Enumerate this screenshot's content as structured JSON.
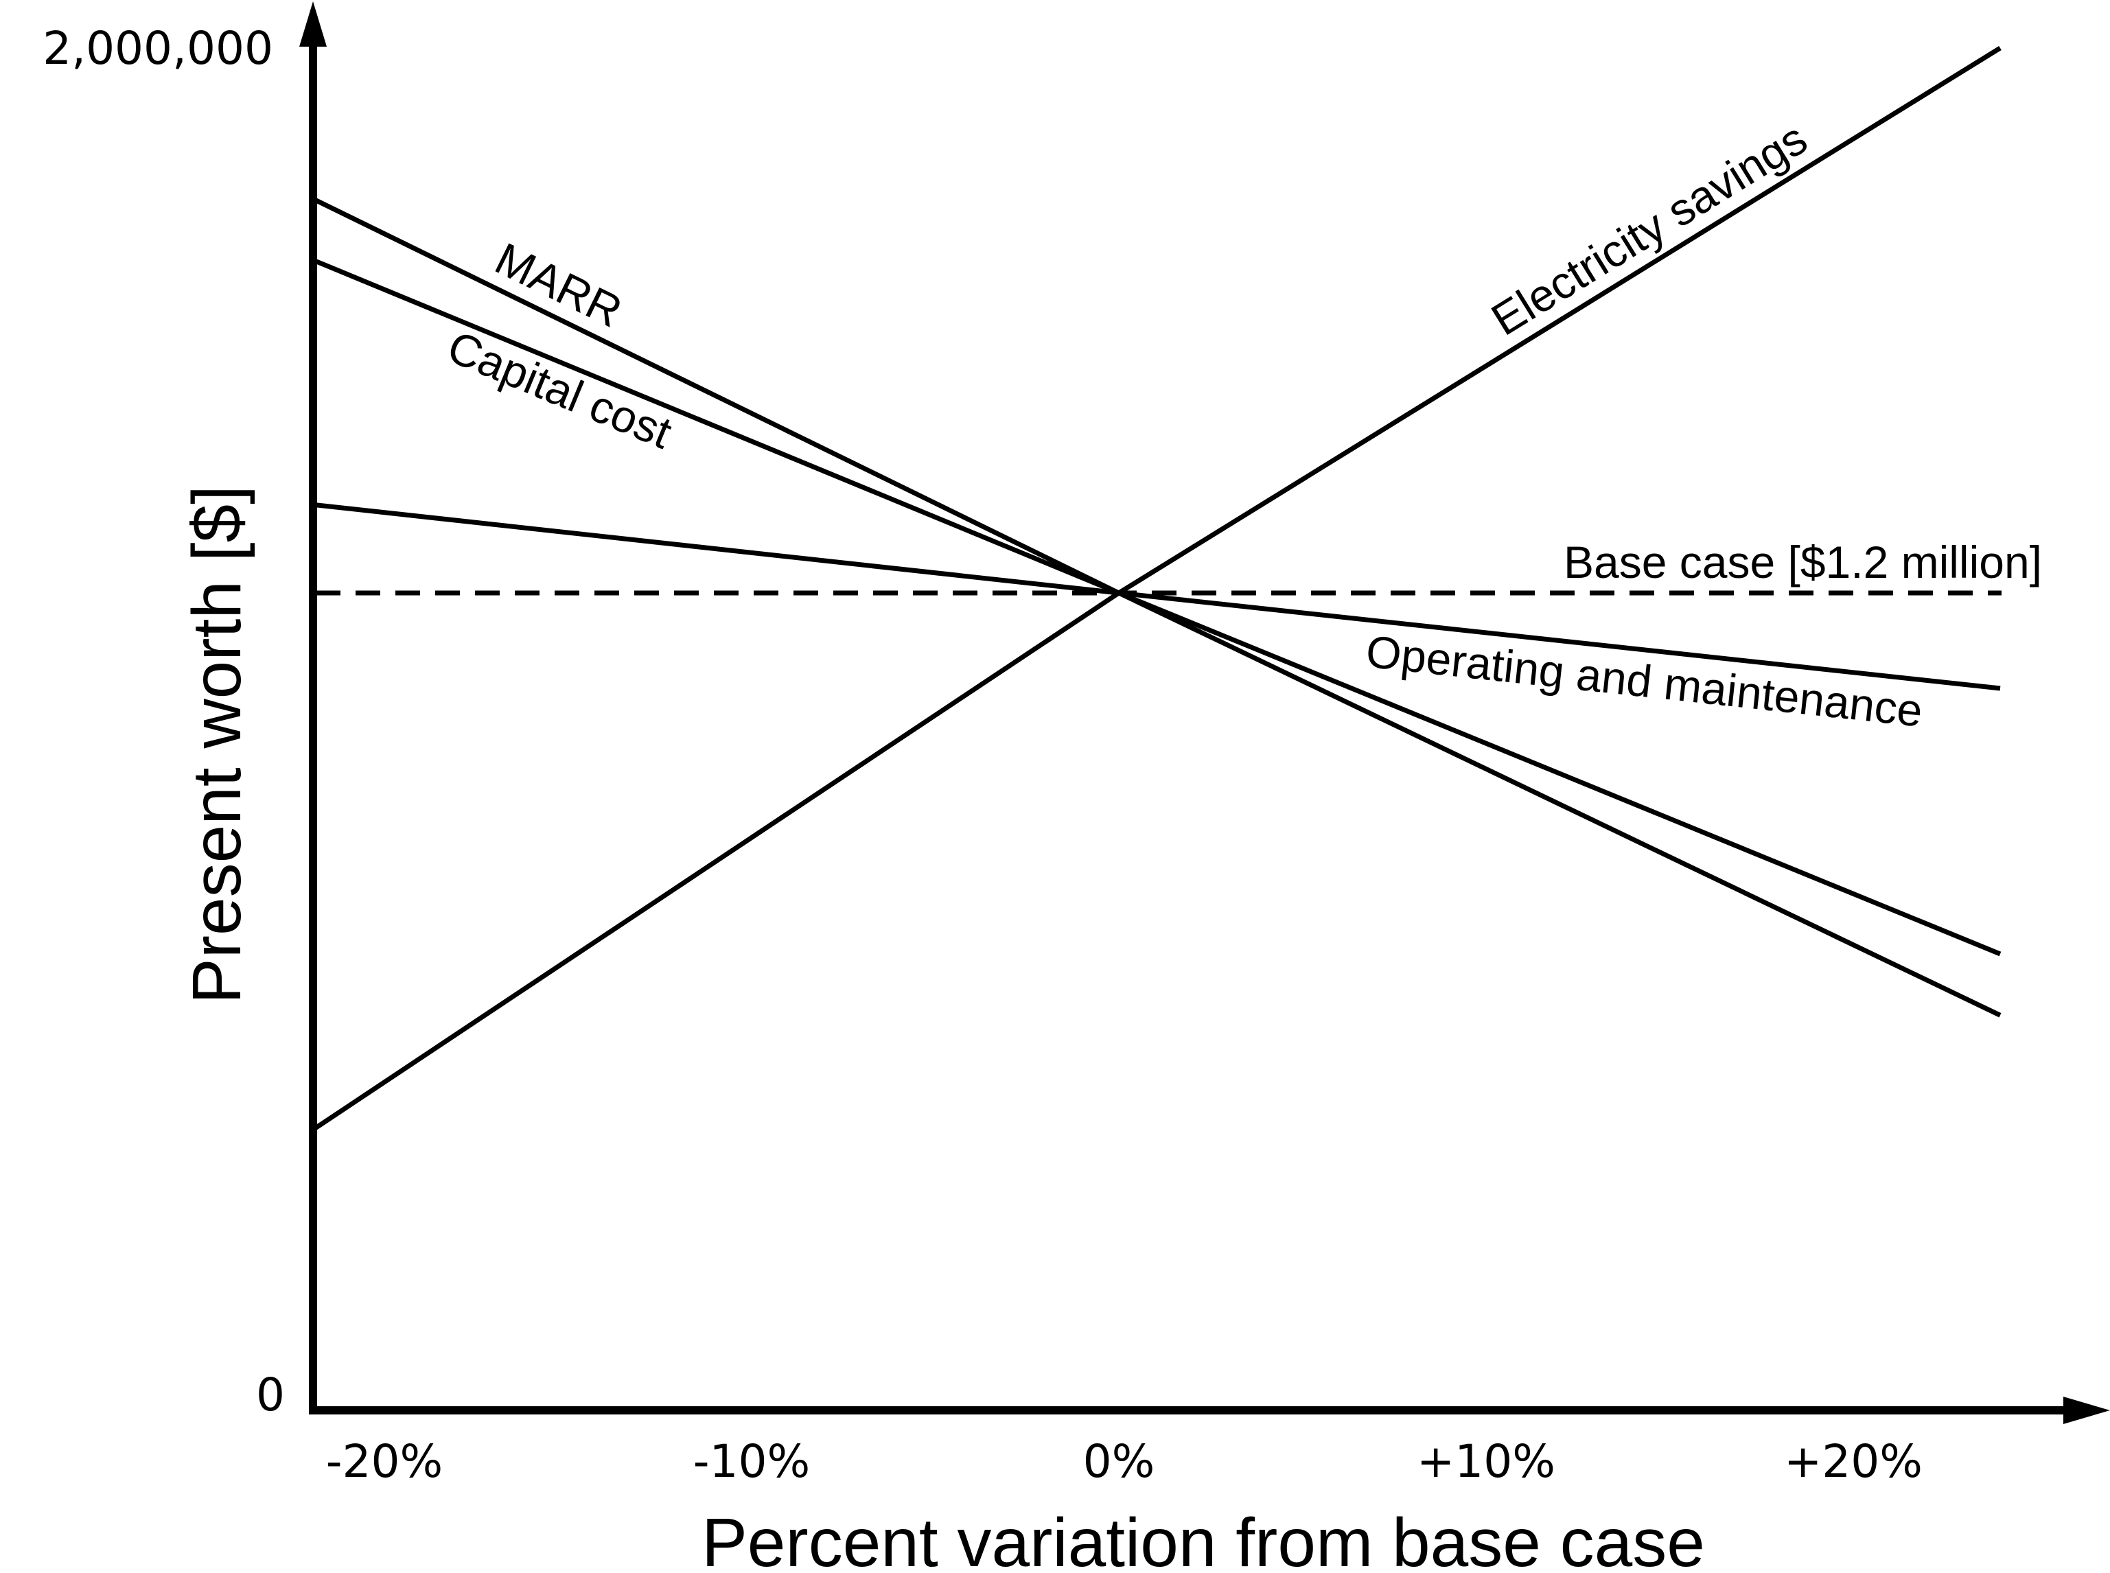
{
  "chart_data": {
    "type": "line",
    "xlabel": "Percent variation from base case",
    "ylabel": "Present worth [$]",
    "x_ticks": [
      "-20%",
      "-10%",
      "0%",
      "+10%",
      "+20%"
    ],
    "x_range": [
      -22,
      24
    ],
    "y_ticks": [
      "0",
      "2,000,000"
    ],
    "ylim": [
      0,
      2000000
    ],
    "grid": false,
    "base_case": {
      "label": "Base case [$1.2 million]",
      "value": 1200000,
      "style": "dashed"
    },
    "series": [
      {
        "name": "MARR",
        "x": [
          -22,
          0,
          24
        ],
        "y": [
          1780000,
          1200000,
          580000
        ]
      },
      {
        "name": "Capital cost",
        "x": [
          -22,
          0,
          24
        ],
        "y": [
          1690000,
          1200000,
          670000
        ]
      },
      {
        "name": "Operating and maintenance",
        "x": [
          -22,
          0,
          24
        ],
        "y": [
          1330000,
          1200000,
          1060000
        ]
      },
      {
        "name": "Electricity savings",
        "x": [
          -22,
          0,
          24
        ],
        "y": [
          410000,
          1200000,
          2000000
        ]
      }
    ]
  }
}
